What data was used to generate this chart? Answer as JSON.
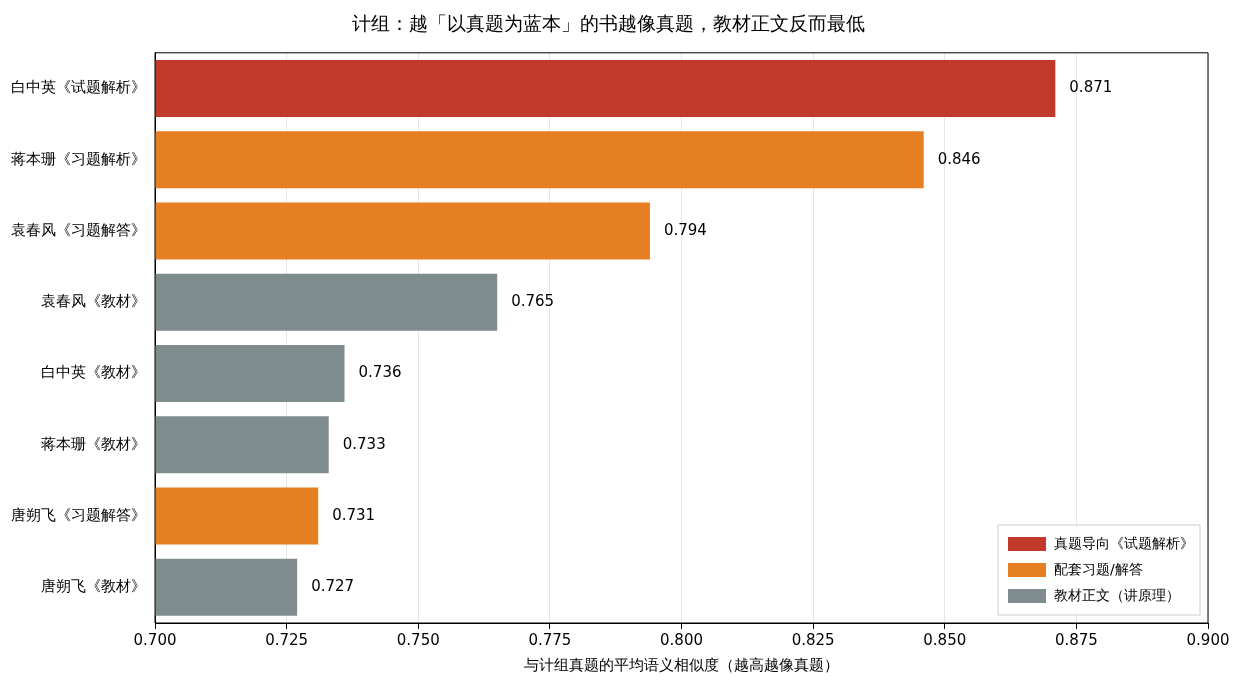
{
  "chart_data": {
    "type": "bar",
    "orientation": "horizontal",
    "title": "计组：越「以真题为蓝本」的书越像真题，教材正文反而最低",
    "xlabel": "与计组真题的平均语义相似度（越高越像真题）",
    "categories": [
      "白中英《试题解析》",
      "蒋本珊《习题解析》",
      "袁春风《习题解答》",
      "袁春风《教材》",
      "白中英《教材》",
      "蒋本珊《教材》",
      "唐朔飞《习题解答》",
      "唐朔飞《教材》"
    ],
    "series": [
      {
        "name": "真题导向《试题解析》",
        "color": "#c0392b",
        "values": [
          0.871,
          null,
          null,
          null,
          null,
          null,
          null,
          null
        ]
      },
      {
        "name": "配套习题/解答",
        "color": "#e67e22",
        "values": [
          null,
          0.846,
          0.794,
          null,
          null,
          null,
          0.731,
          null
        ]
      },
      {
        "name": "教材正文（讲原理）",
        "color": "#7f8c8d",
        "values": [
          null,
          null,
          null,
          0.765,
          0.736,
          0.733,
          null,
          0.727
        ]
      }
    ],
    "xlim": [
      0.7,
      0.9
    ],
    "xticks": [
      {
        "value": 0.7,
        "label": "0.700"
      },
      0.725,
      {
        "value": 0.75,
        "label": "0.750"
      },
      0.775,
      {
        "value": 0.8,
        "label": "0.800"
      },
      0.825,
      {
        "value": 0.85,
        "label": "0.850"
      },
      0.875,
      {
        "value": 0.9,
        "label": "0.900"
      }
    ],
    "grid": "x",
    "legend": "bottom right",
    "data_labels": true
  }
}
